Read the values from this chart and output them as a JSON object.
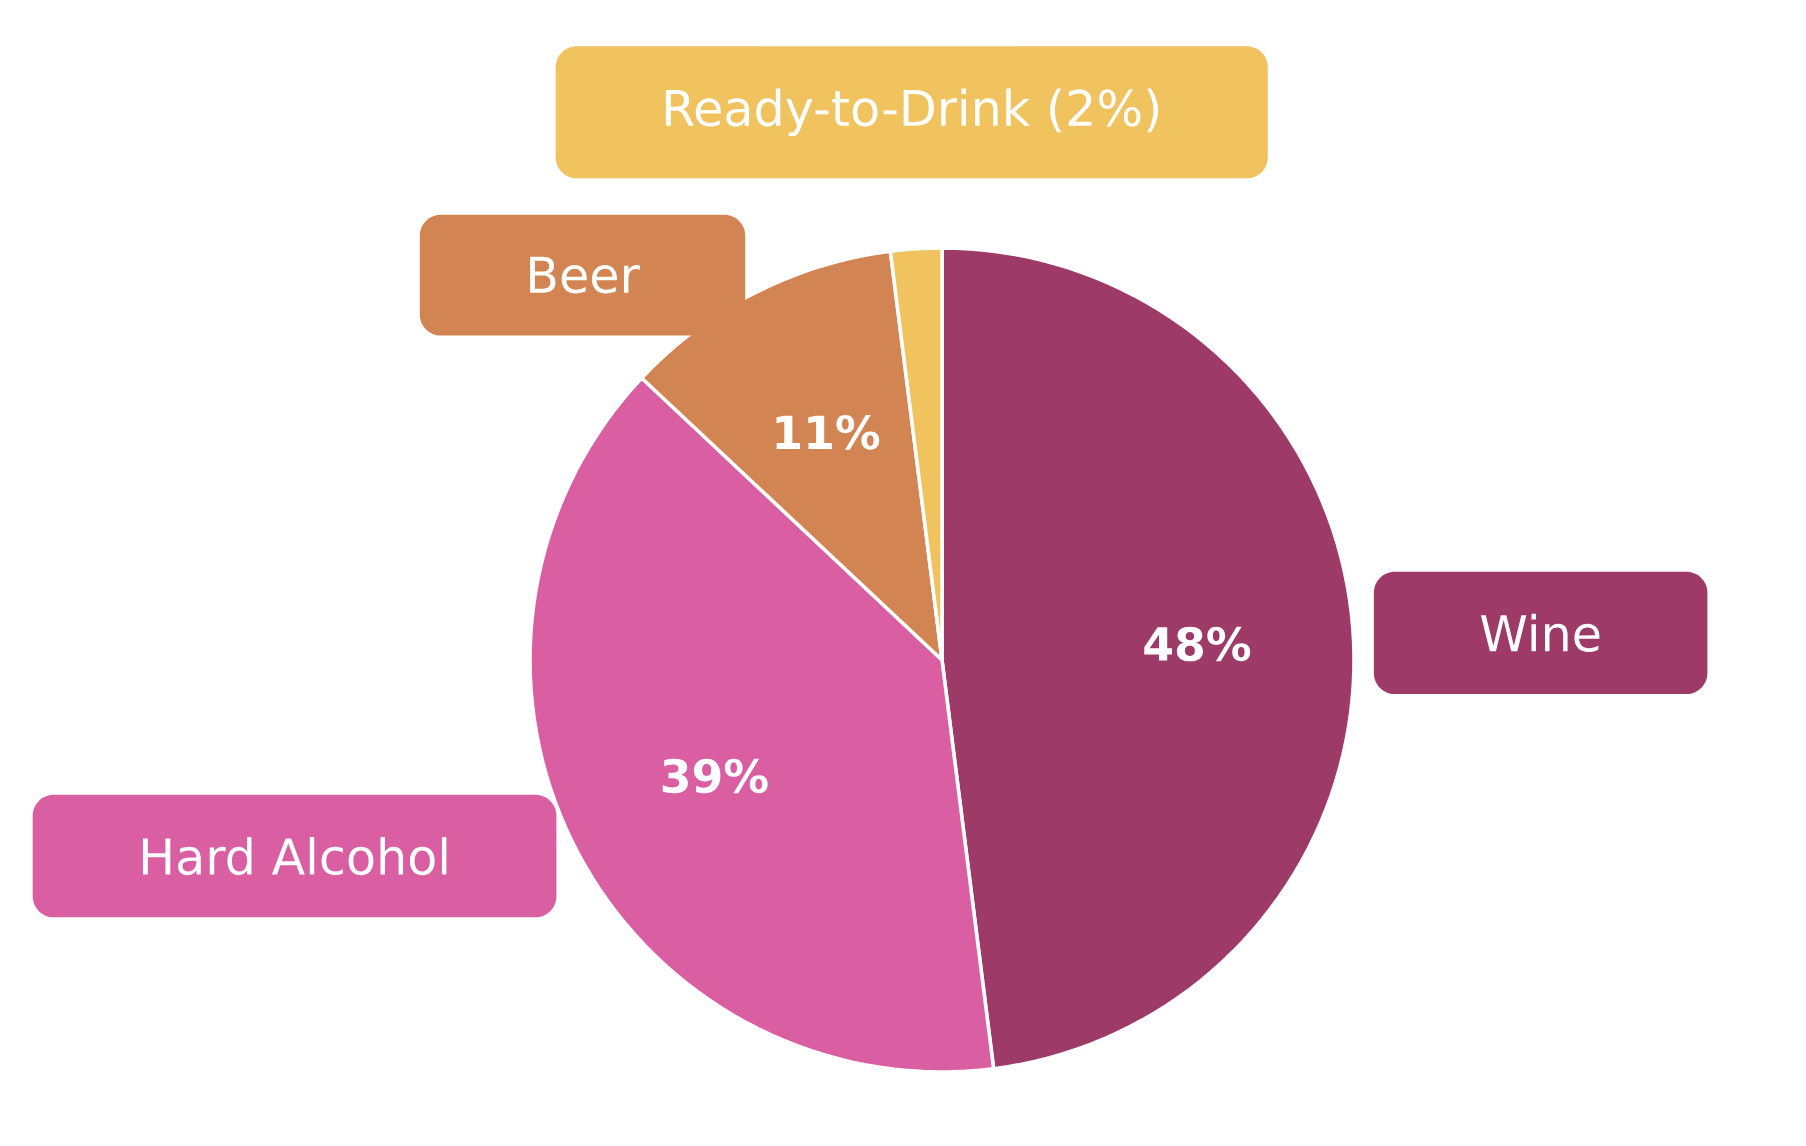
{
  "chart_data": {
    "type": "pie",
    "categories": [
      "Wine",
      "Hard Alcohol",
      "Beer",
      "Ready-to-Drink (2%)"
    ],
    "values": [
      48,
      39,
      11,
      2
    ],
    "colors": [
      "#9e3a68",
      "#d95ea2",
      "#d28552",
      "#f0c35e"
    ],
    "value_labels": [
      "48%",
      "39%",
      "11%",
      null
    ]
  }
}
